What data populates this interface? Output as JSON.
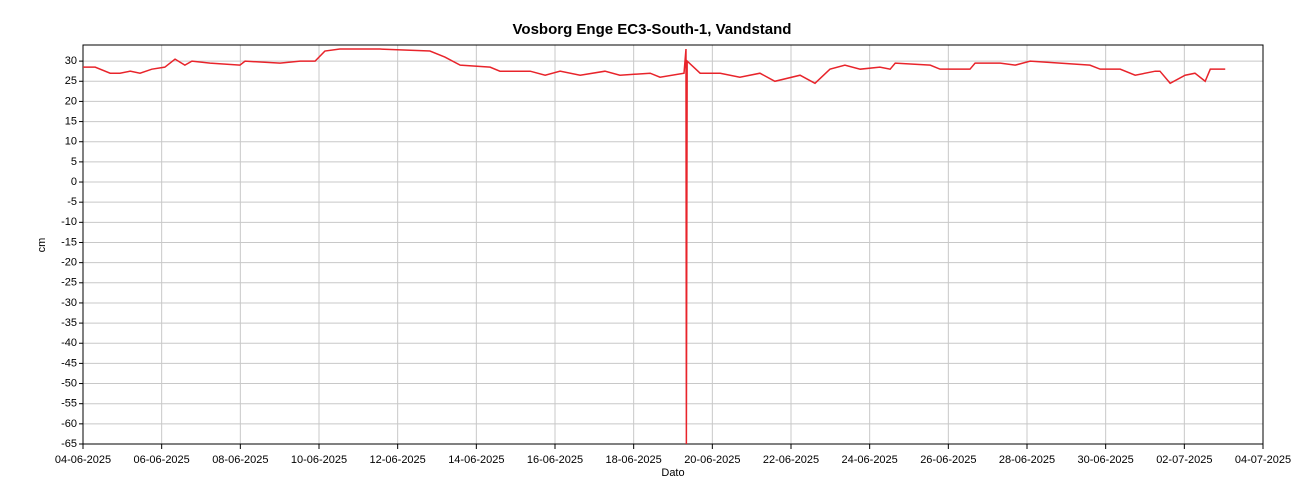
{
  "chart_data": {
    "type": "line",
    "title": "Vosborg Enge EC3-South-1, Vandstand",
    "x_label": "Dato",
    "y_label": "cm",
    "x": [
      0,
      0.31,
      0.69,
      0.94,
      1.2,
      1.45,
      1.75,
      2.08,
      2.34,
      2.59,
      2.77,
      3.23,
      3.99,
      4.12,
      5.01,
      5.52,
      5.9,
      6.15,
      6.53,
      7.55,
      8.82,
      9.2,
      9.59,
      10.35,
      10.6,
      11.37,
      11.75,
      12.13,
      12.64,
      13.27,
      13.65,
      14.42,
      14.67,
      15.28,
      15.33,
      15.34,
      15.36,
      15.69,
      16.2,
      16.7,
      17.21,
      17.59,
      18.23,
      18.61,
      18.99,
      19.37,
      19.76,
      20.26,
      20.52,
      20.65,
      21.54,
      21.79,
      22.55,
      22.68,
      23.32,
      23.7,
      24.08,
      25.6,
      25.86,
      26.37,
      26.75,
      27.26,
      27.38,
      27.64,
      28.02,
      28.27,
      28.53,
      28.66,
      29.04
    ],
    "values": [
      28.5,
      28.5,
      27,
      27,
      27.5,
      27,
      28,
      28.5,
      30.5,
      29,
      30,
      29.5,
      29,
      30,
      29.5,
      30,
      30,
      32.5,
      33,
      33,
      32.5,
      31,
      29,
      28.5,
      27.5,
      27.5,
      26.5,
      27.5,
      26.5,
      27.5,
      26.5,
      27,
      26,
      27,
      33,
      -65,
      30,
      27,
      27,
      26,
      27,
      25,
      26.5,
      24.5,
      28,
      29,
      28,
      28.5,
      28,
      29.5,
      29,
      28,
      28,
      29.5,
      29.5,
      29,
      30,
      29,
      28,
      28,
      26.5,
      27.5,
      27.5,
      24.5,
      26.5,
      27,
      25,
      28,
      28
    ],
    "color": "#e8242b",
    "xlim": [
      0,
      30
    ],
    "ylim": [
      -65,
      34
    ],
    "xticks": [
      {
        "value": 0,
        "label": "04-06-2025"
      },
      {
        "value": 2,
        "label": "06-06-2025"
      },
      {
        "value": 4,
        "label": "08-06-2025"
      },
      {
        "value": 6,
        "label": "10-06-2025"
      },
      {
        "value": 8,
        "label": "12-06-2025"
      },
      {
        "value": 10,
        "label": "14-06-2025"
      },
      {
        "value": 12,
        "label": "16-06-2025"
      },
      {
        "value": 14,
        "label": "18-06-2025"
      },
      {
        "value": 16,
        "label": "20-06-2025"
      },
      {
        "value": 18,
        "label": "22-06-2025"
      },
      {
        "value": 20,
        "label": "24-06-2025"
      },
      {
        "value": 22,
        "label": "26-06-2025"
      },
      {
        "value": 24,
        "label": "28-06-2025"
      },
      {
        "value": 26,
        "label": "30-06-2025"
      },
      {
        "value": 28,
        "label": "02-07-2025"
      },
      {
        "value": 30,
        "label": "04-07-2025"
      }
    ],
    "yticks": [
      30,
      25,
      20,
      15,
      10,
      5,
      0,
      -5,
      -10,
      -15,
      -20,
      -25,
      -30,
      -35,
      -40,
      -45,
      -50,
      -55,
      -60,
      -65
    ],
    "grid": true
  }
}
